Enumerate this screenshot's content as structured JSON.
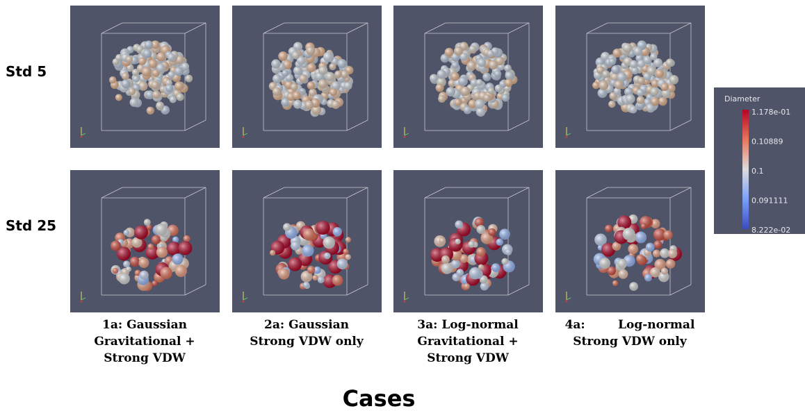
{
  "rows": [
    {
      "label": "Std 5"
    },
    {
      "label": "Std 25"
    }
  ],
  "cases": [
    {
      "lines": [
        "1a: Gaussian",
        "Gravitational +",
        "Strong VDW"
      ]
    },
    {
      "lines": [
        "2a: Gaussian",
        "Strong VDW only"
      ]
    },
    {
      "lines": [
        "3a: Log-normal",
        "Gravitational +",
        "Strong VDW"
      ]
    },
    {
      "lines": [
        "4a:        Log-normal",
        "Strong VDW only"
      ]
    }
  ],
  "axis_title": "Cases",
  "colorbar": {
    "title": "Diameter",
    "labels": [
      "1.178e-01",
      "0.10889",
      "0.1",
      "0.091111",
      "8.222e-02"
    ]
  }
}
